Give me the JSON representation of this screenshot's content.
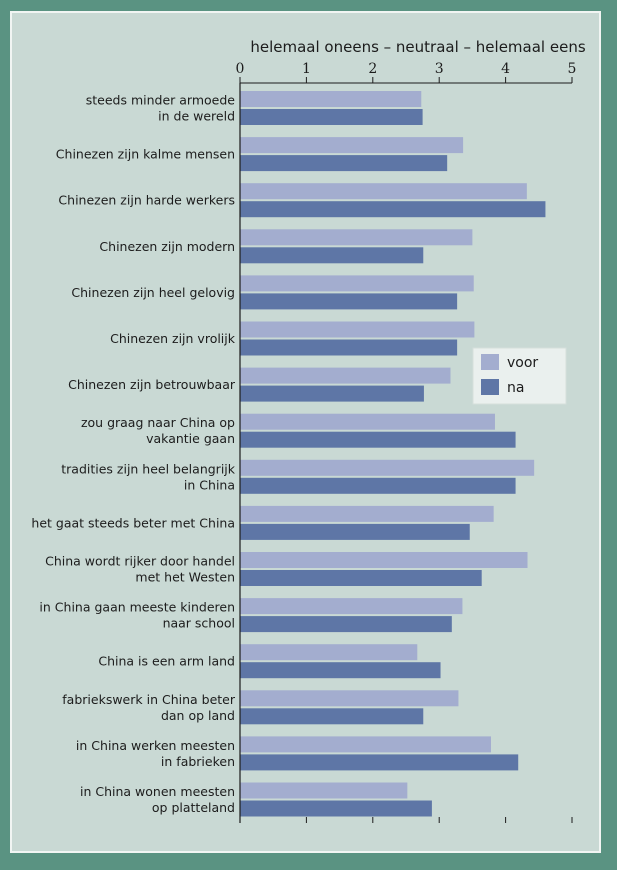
{
  "chart_data": {
    "type": "bar",
    "orientation": "horizontal",
    "title": "helemaal oneens – neutraal – helemaal eens",
    "xlim": [
      0,
      5
    ],
    "xticks": [
      "0",
      "1",
      "2",
      "3",
      "4",
      "5"
    ],
    "grid": false,
    "legend_position": "right",
    "categories": [
      [
        "steeds minder armoede",
        "in de wereld"
      ],
      [
        "Chinezen zijn kalme mensen"
      ],
      [
        "Chinezen zijn harde werkers"
      ],
      [
        "Chinezen zijn modern"
      ],
      [
        "Chinezen zijn heel gelovig"
      ],
      [
        "Chinezen zijn vrolijk"
      ],
      [
        "Chinezen zijn betrouwbaar"
      ],
      [
        "zou graag naar China op",
        "vakantie gaan"
      ],
      [
        "tradities zijn heel belangrijk",
        "in China"
      ],
      [
        "het gaat steeds beter met China"
      ],
      [
        "China wordt rijker door handel",
        "met het Westen"
      ],
      [
        "in China gaan meeste kinderen",
        "naar school"
      ],
      [
        "China is een arm land"
      ],
      [
        "fabriekswerk in China beter",
        "dan op land"
      ],
      [
        "in China werken meesten",
        "in fabrieken"
      ],
      [
        "in China wonen meesten",
        "op platteland"
      ]
    ],
    "series": [
      {
        "name": "voor",
        "color": "#a3adcf",
        "values": [
          2.73,
          3.36,
          4.32,
          3.5,
          3.52,
          3.53,
          3.17,
          3.84,
          4.43,
          3.82,
          4.33,
          3.35,
          2.67,
          3.29,
          3.78,
          2.52
        ]
      },
      {
        "name": "na",
        "color": "#5e76a6",
        "values": [
          2.75,
          3.12,
          4.6,
          2.76,
          3.27,
          3.27,
          2.77,
          4.15,
          4.15,
          3.46,
          3.64,
          3.19,
          3.02,
          2.76,
          4.19,
          2.89
        ]
      }
    ]
  }
}
